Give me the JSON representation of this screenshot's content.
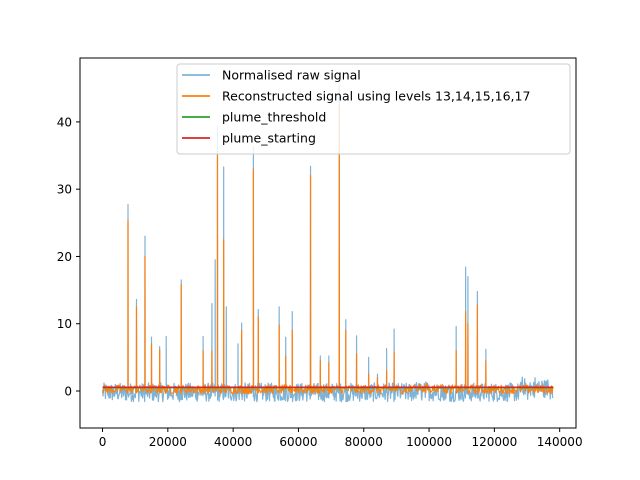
{
  "chart_data": {
    "type": "line",
    "title": "",
    "xlabel": "",
    "ylabel": "",
    "xlim": [
      -6900,
      145000
    ],
    "ylim": [
      -5.5,
      49.5
    ],
    "x_ticks": [
      0,
      20000,
      40000,
      60000,
      80000,
      100000,
      120000,
      140000
    ],
    "x_tick_labels": [
      "0",
      "20000",
      "40000",
      "60000",
      "80000",
      "100000",
      "120000",
      "140000"
    ],
    "y_ticks": [
      0,
      10,
      20,
      30,
      40
    ],
    "y_tick_labels": [
      "0",
      "10",
      "20",
      "30",
      "40"
    ],
    "grid": false,
    "legend_position": "top-right",
    "x_range": [
      0,
      138000
    ],
    "series": [
      {
        "name": "Normalised raw signal",
        "color": "#7fb3d6",
        "baseline_band": [
          -1.6,
          1.2
        ],
        "peaks": [
          [
            7800,
            27.7
          ],
          [
            10400,
            13.6
          ],
          [
            13000,
            23.0
          ],
          [
            15000,
            8.0
          ],
          [
            17500,
            6.6
          ],
          [
            19500,
            8.1
          ],
          [
            24100,
            16.5
          ],
          [
            30800,
            8.1
          ],
          [
            33500,
            13.0
          ],
          [
            34500,
            19.5
          ],
          [
            35200,
            39.3
          ],
          [
            37100,
            33.3
          ],
          [
            37900,
            12.5
          ],
          [
            41500,
            7.0
          ],
          [
            42600,
            10.1
          ],
          [
            46200,
            36.3
          ],
          [
            47700,
            12.1
          ],
          [
            54100,
            12.5
          ],
          [
            56100,
            8.0
          ],
          [
            58100,
            11.8
          ],
          [
            63700,
            33.4
          ],
          [
            66700,
            5.2
          ],
          [
            69300,
            5.2
          ],
          [
            72500,
            45.5
          ],
          [
            74500,
            10.6
          ],
          [
            77800,
            8.2
          ],
          [
            81500,
            5.0
          ],
          [
            84200,
            2.5
          ],
          [
            87000,
            6.3
          ],
          [
            89300,
            9.2
          ],
          [
            108300,
            9.6
          ],
          [
            111200,
            18.4
          ],
          [
            111900,
            17.0
          ],
          [
            114800,
            14.8
          ],
          [
            117400,
            6.2
          ]
        ]
      },
      {
        "name": "Reconstructed signal using levels 13,14,15,16,17",
        "color": "#ff7f0e",
        "baseline_band": [
          -0.4,
          0.9
        ],
        "peaks": [
          [
            7800,
            25.3
          ],
          [
            10400,
            12.5
          ],
          [
            13000,
            20.0
          ],
          [
            15000,
            7.0
          ],
          [
            17500,
            6.1
          ],
          [
            24100,
            15.8
          ],
          [
            30800,
            6.0
          ],
          [
            33500,
            6.0
          ],
          [
            35200,
            35.0
          ],
          [
            37100,
            22.5
          ],
          [
            42600,
            9.0
          ],
          [
            46200,
            33.0
          ],
          [
            47700,
            11.0
          ],
          [
            54100,
            9.8
          ],
          [
            56100,
            5.2
          ],
          [
            58100,
            9.0
          ],
          [
            63700,
            32.0
          ],
          [
            66700,
            4.5
          ],
          [
            69300,
            4.2
          ],
          [
            72500,
            42.5
          ],
          [
            74500,
            9.0
          ],
          [
            77800,
            5.5
          ],
          [
            81500,
            2.5
          ],
          [
            84200,
            2.0
          ],
          [
            87000,
            3.0
          ],
          [
            89300,
            5.8
          ],
          [
            108300,
            6.0
          ],
          [
            111200,
            11.8
          ],
          [
            111900,
            10.0
          ],
          [
            114800,
            12.8
          ],
          [
            117400,
            4.5
          ]
        ]
      },
      {
        "name": "plume_threshold",
        "color": "#2ca02c",
        "values": [
          [
            0,
            0.5
          ],
          [
            138000,
            0.5
          ]
        ]
      },
      {
        "name": "plume_starting",
        "color": "#d62728",
        "values": [
          [
            0,
            0.55
          ],
          [
            138000,
            0.55
          ]
        ]
      }
    ]
  }
}
